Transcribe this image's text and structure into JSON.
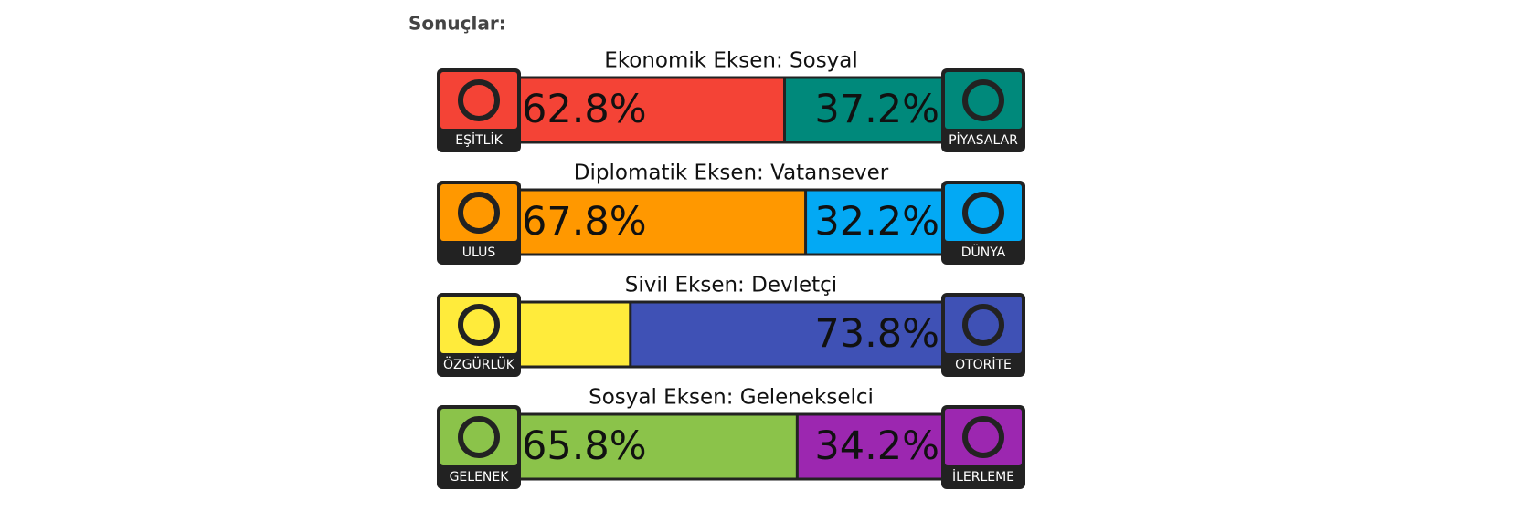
{
  "heading": "Sonuçlar:",
  "axes": [
    {
      "title": "Ekonomik Eksen: Sosyal",
      "left": {
        "name": "EŞİTLİK",
        "color": "#f44336",
        "value": 62.8,
        "value_label": "62.8%"
      },
      "right": {
        "name": "PİYASALAR",
        "color": "#00897b",
        "value": 37.2,
        "value_label": "37.2%"
      }
    },
    {
      "title": "Diplomatik Eksen: Vatansever",
      "left": {
        "name": "ULUS",
        "color": "#ff9800",
        "value": 67.8,
        "value_label": "67.8%"
      },
      "right": {
        "name": "DÜNYA",
        "color": "#03a9f4",
        "value": 32.2,
        "value_label": "32.2%"
      }
    },
    {
      "title": "Sivil Eksen: Devletçi",
      "left": {
        "name": "ÖZGÜRLÜK",
        "color": "#ffeb3b",
        "value": 26.2
      },
      "right": {
        "name": "OTORİTE",
        "color": "#3f51b5",
        "value": 73.8,
        "value_label": "73.8%"
      }
    },
    {
      "title": "Sosyal Eksen: Gelenekselci",
      "left": {
        "name": "GELENEK",
        "color": "#8bc34a",
        "value": 65.8,
        "value_label": "65.8%"
      },
      "right": {
        "name": "İLERLEME",
        "color": "#9c27b0",
        "value": 34.2,
        "value_label": "34.2%"
      }
    }
  ]
}
